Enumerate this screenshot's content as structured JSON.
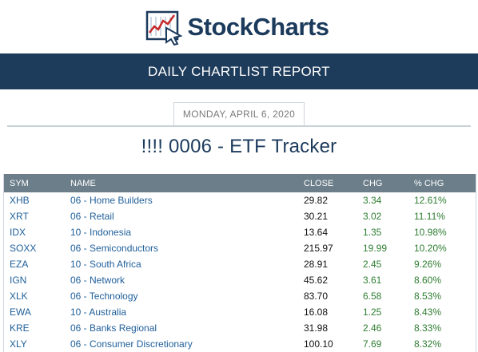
{
  "header": {
    "logo_text": "StockCharts",
    "report_title": "DAILY CHARTLIST REPORT"
  },
  "report": {
    "date": "MONDAY, APRIL 6, 2020",
    "list_title": "!!!! 0006 - ETF Tracker"
  },
  "table": {
    "columns": {
      "sym": "SYM",
      "name": "NAME",
      "close": "CLOSE",
      "chg": "CHG",
      "pct_chg": "% CHG"
    },
    "rows": [
      {
        "sym": "XHB",
        "name": "06 - Home Builders",
        "close": "29.82",
        "chg": "3.34",
        "pct_chg": "12.61%"
      },
      {
        "sym": "XRT",
        "name": "06 - Retail",
        "close": "30.21",
        "chg": "3.02",
        "pct_chg": "11.11%"
      },
      {
        "sym": "IDX",
        "name": "10 - Indonesia",
        "close": "13.64",
        "chg": "1.35",
        "pct_chg": "10.98%"
      },
      {
        "sym": "SOXX",
        "name": "06 - Semiconductors",
        "close": "215.97",
        "chg": "19.99",
        "pct_chg": "10.20%"
      },
      {
        "sym": "EZA",
        "name": "10 - South Africa",
        "close": "28.91",
        "chg": "2.45",
        "pct_chg": "9.26%"
      },
      {
        "sym": "IGN",
        "name": "06 - Network",
        "close": "45.62",
        "chg": "3.61",
        "pct_chg": "8.60%"
      },
      {
        "sym": "XLK",
        "name": "06 - Technology",
        "close": "83.70",
        "chg": "6.58",
        "pct_chg": "8.53%"
      },
      {
        "sym": "EWA",
        "name": "10 - Australia",
        "close": "16.08",
        "chg": "1.25",
        "pct_chg": "8.43%"
      },
      {
        "sym": "KRE",
        "name": "06 - Banks Regional",
        "close": "31.98",
        "chg": "2.46",
        "pct_chg": "8.33%"
      },
      {
        "sym": "XLY",
        "name": "06 - Consumer Discretionary",
        "close": "100.10",
        "chg": "7.69",
        "pct_chg": "8.32%"
      }
    ]
  },
  "colors": {
    "brand_navy": "#1d3b5a",
    "link_blue": "#1f5f9a",
    "gain_green": "#2e7d32",
    "table_header": "#6b7e8a"
  },
  "icons": {
    "logo": "stock-chart-logo-icon"
  }
}
